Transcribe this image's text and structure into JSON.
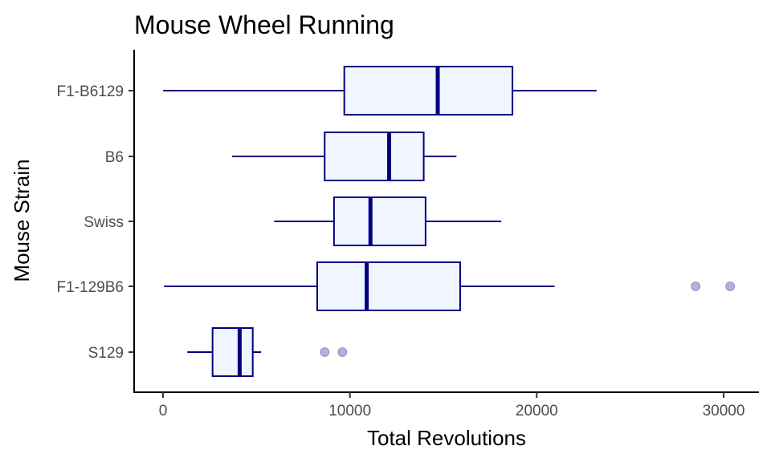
{
  "chart_data": {
    "type": "boxplot",
    "orientation": "horizontal",
    "title": "Mouse Wheel Running",
    "xlabel": "Total Revolutions",
    "ylabel": "Mouse Strain",
    "xlim": [
      -1600,
      32000
    ],
    "xticks": [
      0,
      10000,
      20000,
      30000
    ],
    "xtick_labels": [
      "0",
      "10000",
      "20000",
      "30000"
    ],
    "grid": false,
    "colors": {
      "box_fill": "#F0F5FF",
      "box_stroke": "#000080",
      "outlier": "#000080"
    },
    "categories": [
      "F1-B6129",
      "B6",
      "Swiss",
      "F1-129B6",
      "S129"
    ],
    "boxes": [
      {
        "category": "F1-B6129",
        "whisker_low": 0,
        "q1": 9700,
        "median": 14700,
        "q3": 18700,
        "whisker_high": 23200,
        "outliers": []
      },
      {
        "category": "B6",
        "whisker_low": 3700,
        "q1": 8650,
        "median": 12100,
        "q3": 13950,
        "whisker_high": 15700,
        "outliers": []
      },
      {
        "category": "Swiss",
        "whisker_low": 5950,
        "q1": 9150,
        "median": 11100,
        "q3": 14050,
        "whisker_high": 18100,
        "outliers": []
      },
      {
        "category": "F1-129B6",
        "whisker_low": 50,
        "q1": 8250,
        "median": 10900,
        "q3": 15900,
        "whisker_high": 20950,
        "outliers": [
          28500,
          30350
        ]
      },
      {
        "category": "S129",
        "whisker_low": 1300,
        "q1": 2650,
        "median": 4100,
        "q3": 4800,
        "whisker_high": 5250,
        "outliers": [
          8650,
          9600
        ]
      }
    ]
  }
}
